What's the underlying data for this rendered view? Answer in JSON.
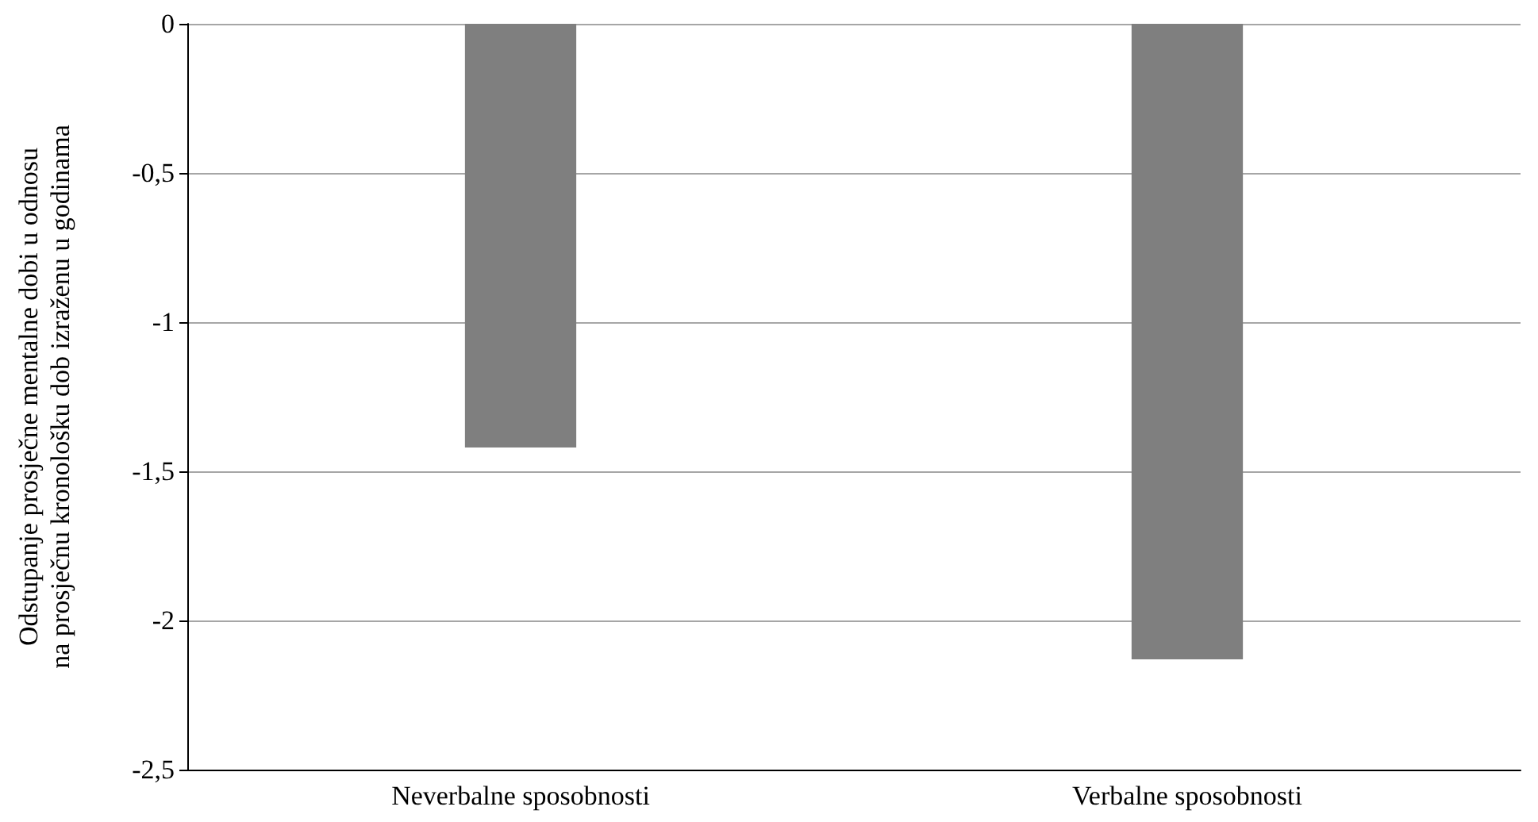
{
  "chart_data": {
    "type": "bar",
    "ylabel": "Odstupanje prosječne mentalne dobi u odnosu\nna prosječnu kronološku dob izraženu u godinama",
    "categories": [
      "Neverbalne sposobnosti",
      "Verbalne sposobnosti"
    ],
    "values": [
      -1.42,
      -2.13
    ],
    "color": "#7f7f7f",
    "ylim": [
      -2.5,
      0
    ],
    "yticks": [
      {
        "value": -2.5,
        "label": "-2,5"
      },
      {
        "value": -2,
        "label": "-2"
      },
      {
        "value": -1.5,
        "label": "-1,5"
      },
      {
        "value": -1,
        "label": "-1"
      },
      {
        "value": -0.5,
        "label": "-0,5"
      },
      {
        "value": 0,
        "label": "0"
      }
    ],
    "grid": "y"
  }
}
